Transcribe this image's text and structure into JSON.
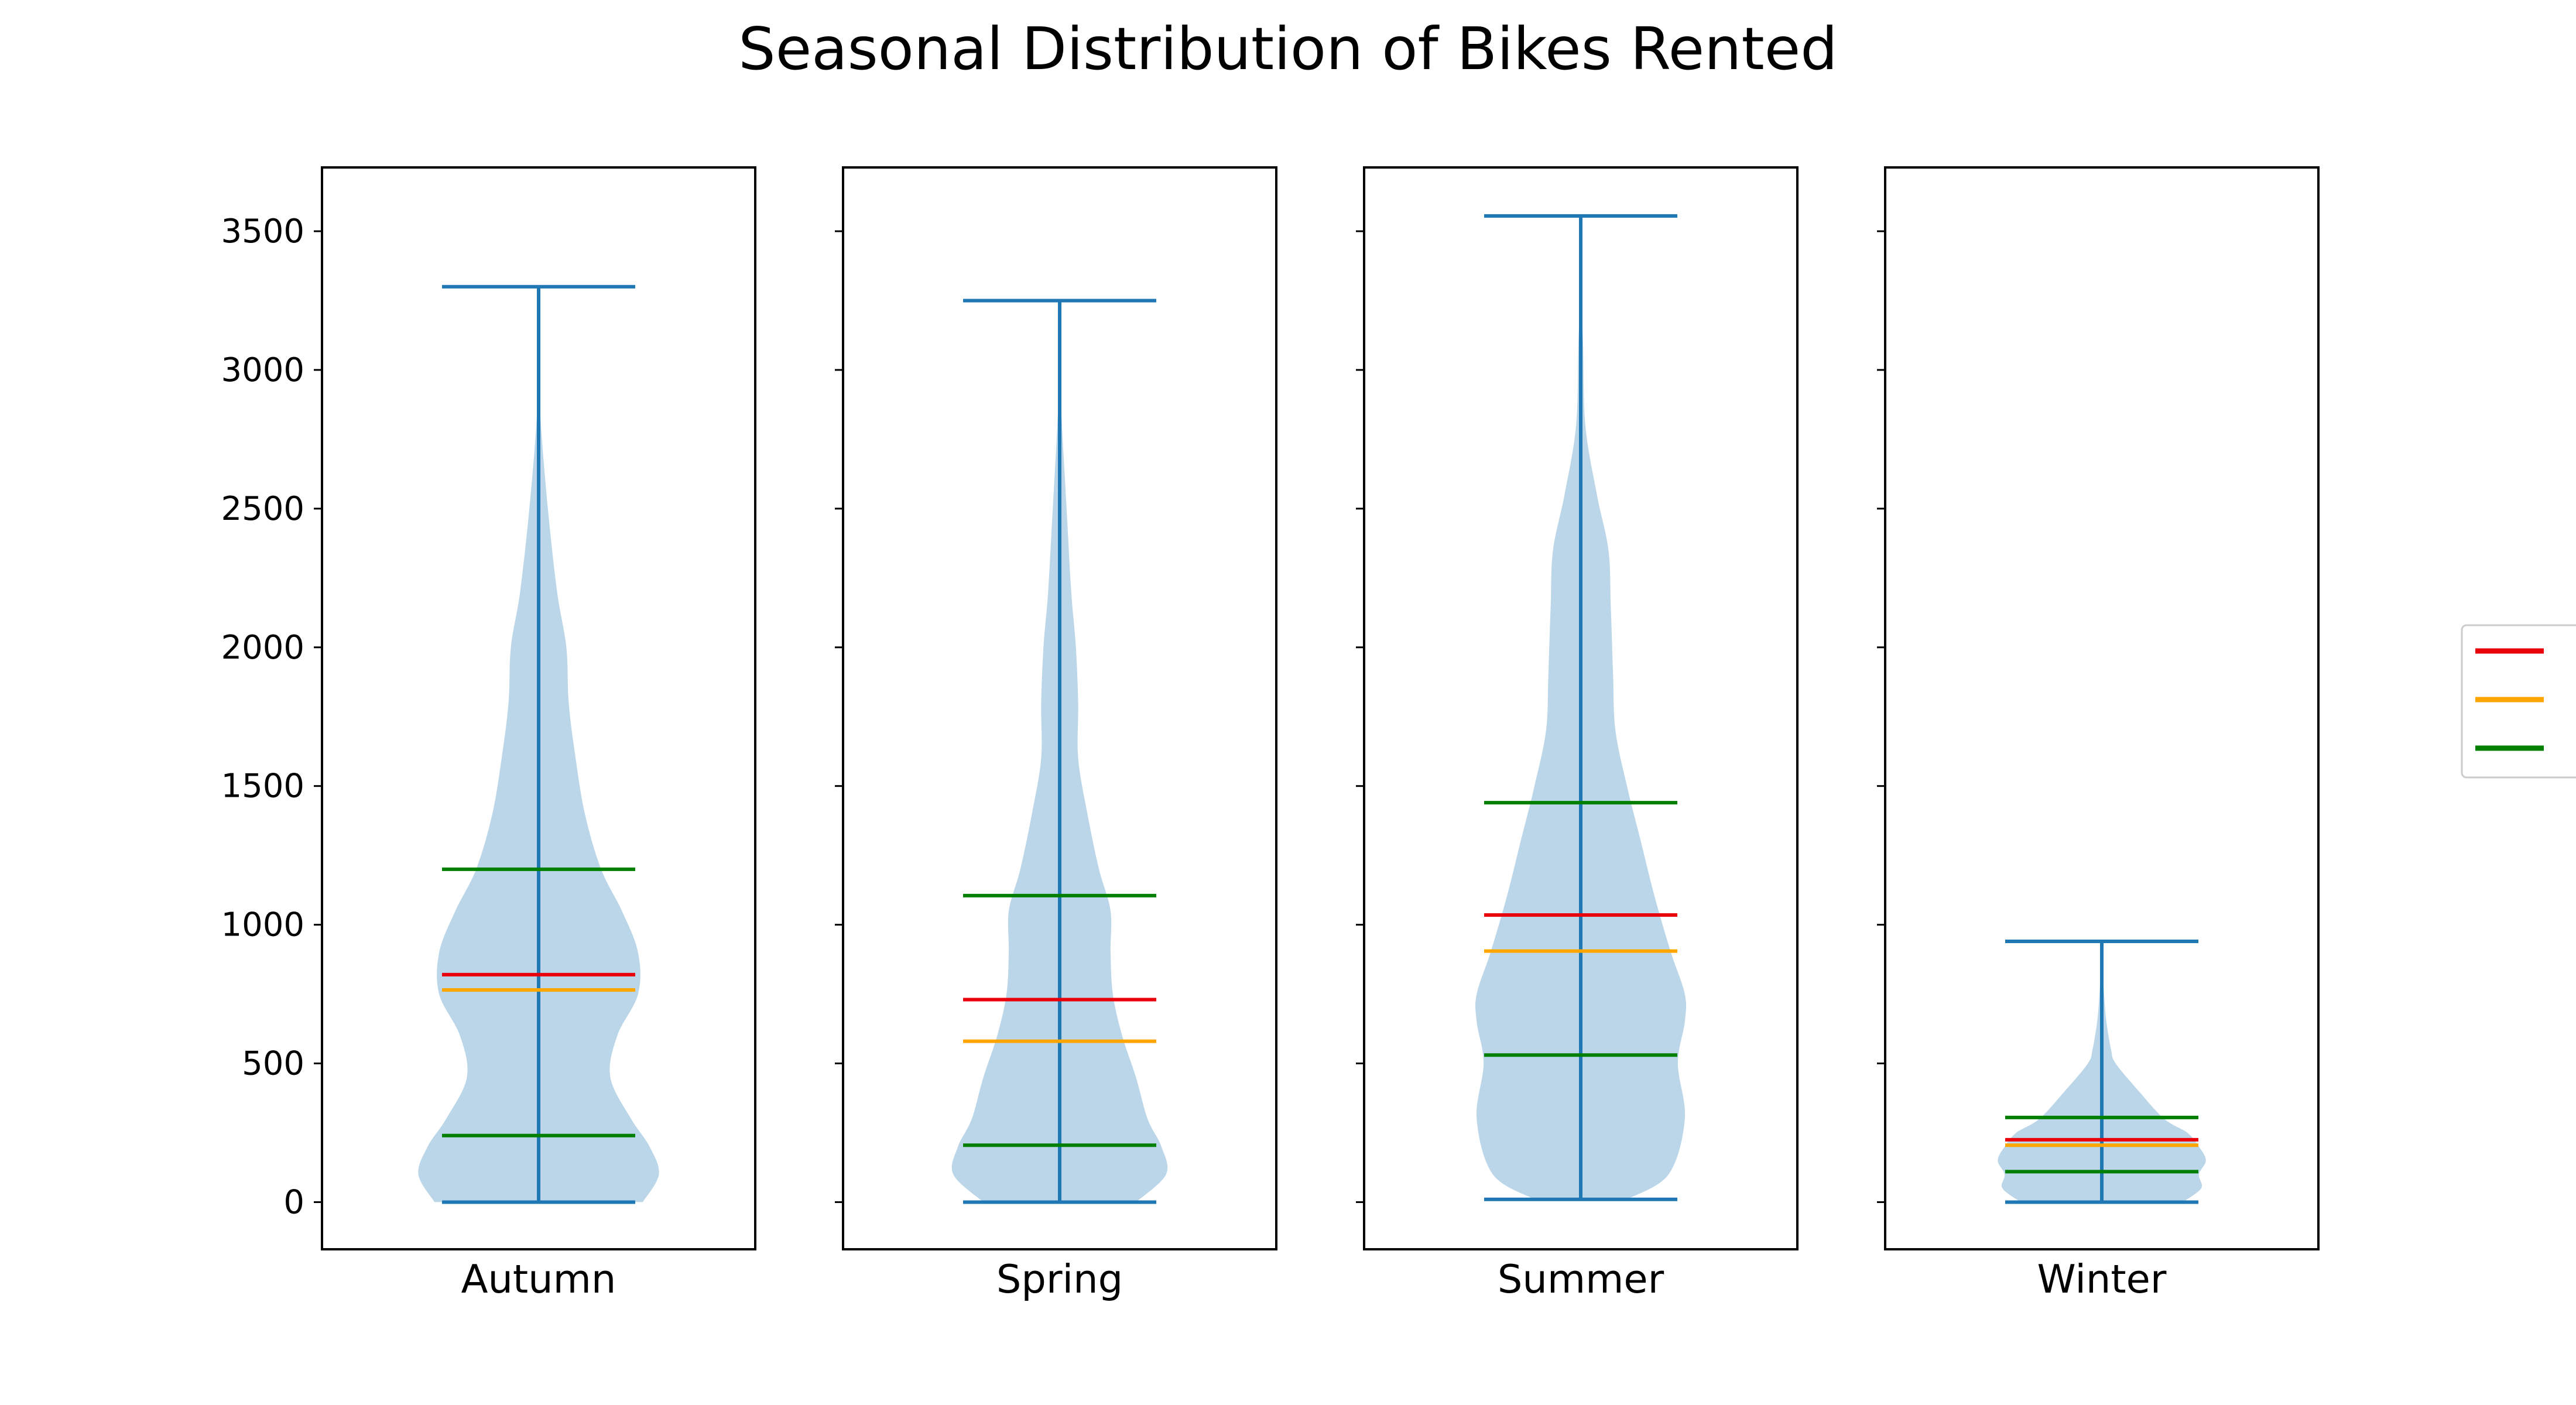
{
  "chart_data": {
    "type": "violin",
    "title": "Seasonal Distribution of Bikes Rented",
    "ylim": [
      -170,
      3730
    ],
    "yticks": [
      0,
      500,
      1000,
      1500,
      2000,
      2500,
      3000,
      3500
    ],
    "legend_position": "center-right",
    "colors": {
      "body": "#1f77b4",
      "mean": "#e8000b",
      "median": "#ffa500",
      "quartile": "#007f00",
      "extrema": "#1f77b4"
    },
    "stats": [
      {
        "category": "Autumn",
        "min": 0,
        "q1": 240,
        "median": 765,
        "mean": 820,
        "q3": 1200,
        "max": 3300
      },
      {
        "category": "Spring",
        "min": 0,
        "q1": 205,
        "median": 580,
        "mean": 730,
        "q3": 1105,
        "max": 3250
      },
      {
        "category": "Summer",
        "min": 10,
        "q1": 530,
        "median": 905,
        "mean": 1035,
        "q3": 1440,
        "max": 3555
      },
      {
        "category": "Winter",
        "min": 0,
        "q1": 110,
        "median": 205,
        "mean": 225,
        "q3": 305,
        "max": 940
      }
    ],
    "density_profiles": [
      {
        "category": "Autumn",
        "y": [
          0,
          100,
          200,
          300,
          450,
          600,
          750,
          900,
          1050,
          1200,
          1400,
          1600,
          1800,
          2000,
          2200,
          2500,
          2800,
          3000
        ],
        "half_width": [
          0.45,
          0.52,
          0.48,
          0.4,
          0.31,
          0.34,
          0.43,
          0.43,
          0.36,
          0.27,
          0.2,
          0.16,
          0.13,
          0.12,
          0.08,
          0.04,
          0.01,
          0.0
        ]
      },
      {
        "category": "Spring",
        "y": [
          0,
          100,
          200,
          300,
          450,
          600,
          750,
          900,
          1050,
          1200,
          1400,
          1600,
          1800,
          2000,
          2200,
          2500,
          2800,
          3000
        ],
        "half_width": [
          0.33,
          0.46,
          0.44,
          0.38,
          0.33,
          0.27,
          0.23,
          0.22,
          0.22,
          0.17,
          0.12,
          0.08,
          0.08,
          0.07,
          0.05,
          0.03,
          0.01,
          0.0
        ]
      },
      {
        "category": "Summer",
        "y": [
          10,
          100,
          300,
          500,
          650,
          750,
          900,
          1100,
          1300,
          1500,
          1700,
          1900,
          2150,
          2350,
          2550,
          2800,
          3100,
          3300,
          3555
        ],
        "half_width": [
          0.2,
          0.38,
          0.45,
          0.42,
          0.45,
          0.45,
          0.39,
          0.32,
          0.26,
          0.2,
          0.15,
          0.14,
          0.13,
          0.12,
          0.07,
          0.02,
          0.01,
          0.0,
          0.0
        ]
      },
      {
        "category": "Winter",
        "y": [
          0,
          50,
          100,
          150,
          200,
          250,
          300,
          400,
          500,
          550,
          650,
          750,
          900
        ],
        "half_width": [
          0.35,
          0.43,
          0.42,
          0.45,
          0.42,
          0.37,
          0.27,
          0.16,
          0.06,
          0.04,
          0.02,
          0.01,
          0.0
        ]
      }
    ]
  }
}
